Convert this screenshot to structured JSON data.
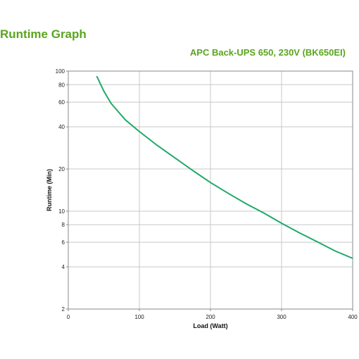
{
  "header": {
    "title": "Runtime Graph",
    "model": "APC Back-UPS 650, 230V (BK650EI)"
  },
  "colors": {
    "accent": "#5aa51f",
    "curve": "#1fa86a",
    "grid": "#c8c8c8",
    "frame": "#8a8a8a"
  },
  "chart_data": {
    "type": "line",
    "title": "APC Back-UPS 650, 230V (BK650EI)",
    "xlabel": "Load (Watt)",
    "ylabel": "Runtime (Min)",
    "xlim": [
      0,
      400
    ],
    "ylim": [
      2,
      100
    ],
    "yscale": "log",
    "grid": true,
    "x_ticks": [
      0,
      100,
      200,
      300,
      400
    ],
    "y_ticks": [
      2,
      4,
      6,
      8,
      10,
      20,
      40,
      60,
      80,
      100
    ],
    "series": [
      {
        "x": [
          40,
          50,
          60,
          80,
          100,
          125,
          150,
          175,
          200,
          225,
          250,
          275,
          300,
          325,
          350,
          375,
          400
        ],
        "y": [
          92,
          72,
          59,
          45,
          37,
          29.5,
          24,
          19.5,
          16,
          13.4,
          11.3,
          9.7,
          8.2,
          7,
          6.05,
          5.2,
          4.6
        ]
      }
    ]
  }
}
